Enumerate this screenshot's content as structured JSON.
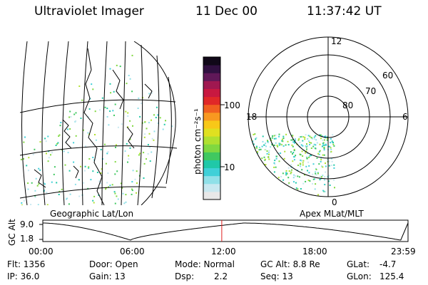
{
  "header": {
    "instrument": "Ultraviolet Imager",
    "date": "11 Dec 00",
    "time": "11:37:42 UT"
  },
  "geo_panel": {
    "title": "Geographic Lat/Lon"
  },
  "polar_panel": {
    "title": "Apex MLat/MLT",
    "mlt_labels": {
      "top": "12",
      "left": "18",
      "right": "6",
      "bottom": "0"
    },
    "lat_labels": [
      "60",
      "70",
      "80"
    ]
  },
  "colorbar": {
    "unit_label": "photon cm⁻²s⁻¹",
    "ticks": [
      "100",
      "10"
    ],
    "colors": [
      "#e8e8e8",
      "#c8e8f0",
      "#90e0e8",
      "#40d0d8",
      "#20c8a8",
      "#40c860",
      "#80d840",
      "#b0e030",
      "#e0e020",
      "#f8c818",
      "#f89820",
      "#f06020",
      "#e02828",
      "#c81840",
      "#a01850",
      "#601858",
      "#301040",
      "#100818"
    ]
  },
  "altitude_plot": {
    "ylabel": "GC Alt",
    "yticks": [
      "9.0",
      "1.8"
    ],
    "xticks": [
      "00:00",
      "06:00",
      "12:00",
      "18:00",
      "23:59"
    ],
    "current_time_fraction": 0.49
  },
  "info": {
    "flt": "Flt: 1356",
    "ip": "IP: 36.0",
    "door": "Door: Open",
    "gain": "Gain: 13",
    "mode": "Mode: Normal",
    "dsp_label": "Dsp:",
    "dsp_value": "2.2",
    "gc_alt": "GC Alt: 8.8 Re",
    "seq": "Seq: 13",
    "glat_label": "GLat:",
    "glat_value": "-4.7",
    "glon_label": "GLon:",
    "glon_value": "125.4"
  }
}
